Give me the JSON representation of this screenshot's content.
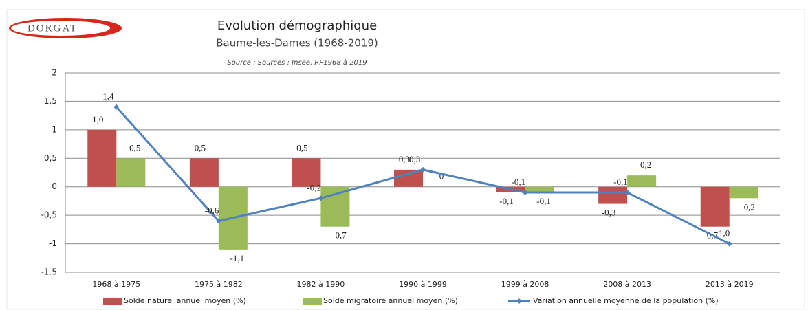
{
  "logo": "DORGAT",
  "chart_data": {
    "type": "bar-line",
    "title": "Evolution démographique",
    "subtitle": "Baume-les-Dames (1968-2019)",
    "source": "Source :  Sources : Insee, RP1968 à 2019",
    "categories": [
      "1968 à 1975",
      "1975 à 1982",
      "1982 à 1990",
      "1990 à 1999",
      "1999 à 2008",
      "2008 à 2013",
      "2013 à 2019"
    ],
    "series": [
      {
        "name": "Solde naturel annuel moyen (%)",
        "type": "bar",
        "color": "#c0504d",
        "values": [
          1.0,
          0.5,
          0.5,
          0.3,
          -0.1,
          -0.3,
          -0.7
        ],
        "value_labels": [
          "1,0",
          "0,5",
          "0,5",
          "0,3",
          "-0,1",
          "-0,3",
          "-0,7"
        ]
      },
      {
        "name": "Solde migratoire annuel moyen (%)",
        "type": "bar",
        "color": "#9bbb59",
        "values": [
          0.5,
          -1.1,
          -0.7,
          0,
          -0.1,
          0.2,
          -0.2
        ],
        "value_labels": [
          "0,5",
          "-1,1",
          "-0,7",
          "0",
          "-0,1",
          "0,2",
          "-0,2"
        ]
      },
      {
        "name": "Variation annuelle moyenne de la population (%)",
        "type": "line",
        "color": "#4f81bd",
        "values": [
          1.4,
          -0.6,
          -0.2,
          0.3,
          -0.1,
          -0.1,
          -1.0
        ],
        "value_labels": [
          "1,4",
          "-0,6",
          "-0,2",
          "0,3",
          "-0,1",
          "-0,1",
          "-1,0"
        ]
      }
    ],
    "ylim": [
      -1.5,
      2
    ],
    "yticks": [
      -1.5,
      -1,
      {
        "value": -0.5,
        "label": "-0,5"
      },
      0,
      {
        "value": 0.5,
        "label": "0,5"
      },
      1,
      {
        "value": 1.5,
        "label": "1,5"
      },
      2
    ],
    "grid": true,
    "legend": "bottom"
  }
}
